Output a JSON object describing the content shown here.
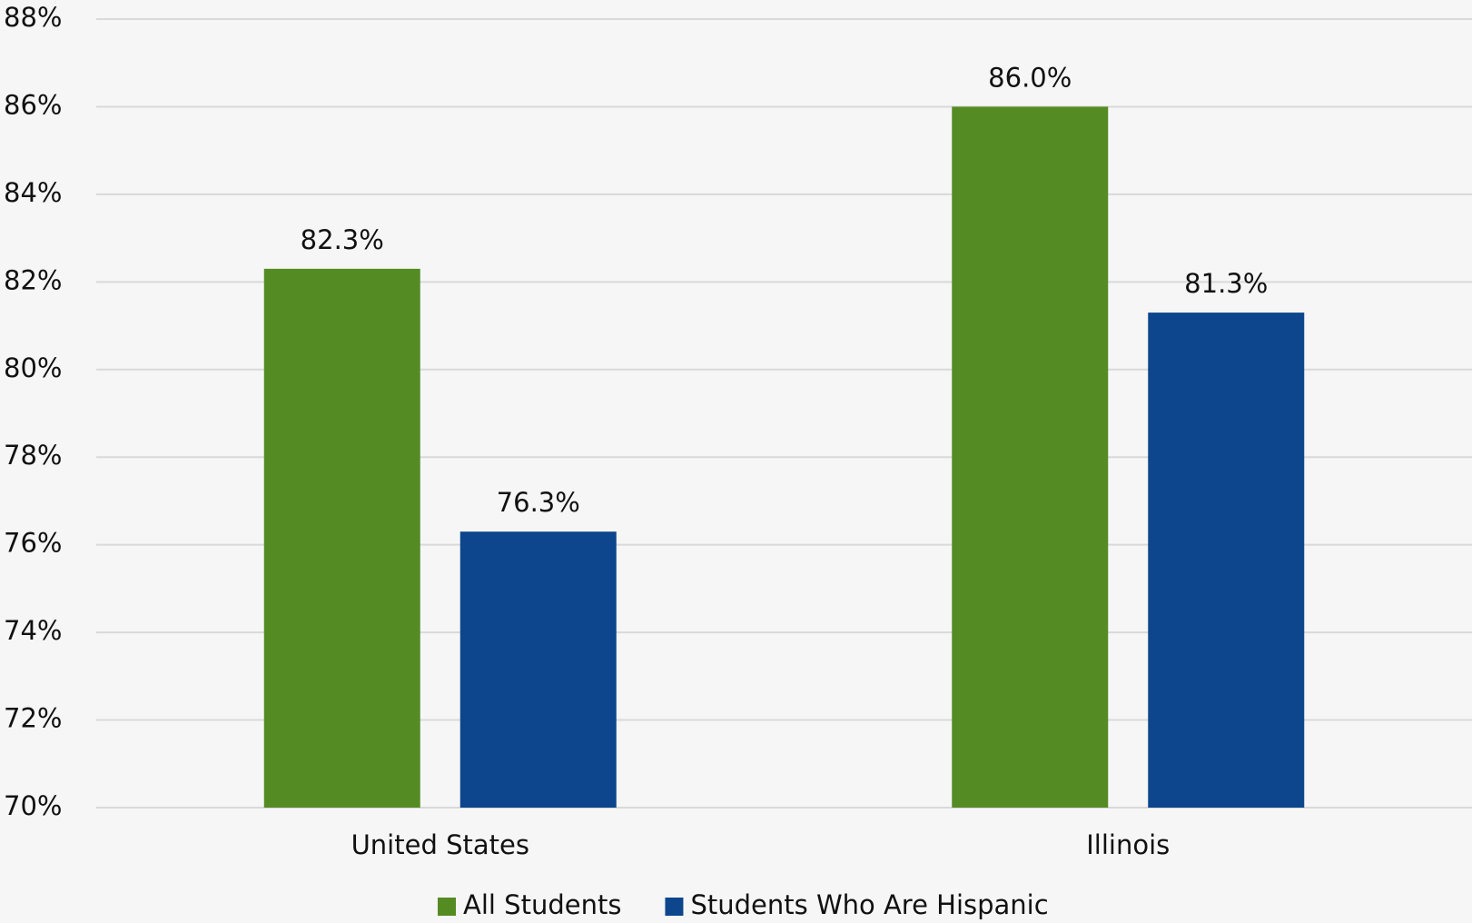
{
  "chart_data": {
    "type": "bar",
    "categories": [
      "United States",
      "Illinois"
    ],
    "series": [
      {
        "name": "All Students",
        "color": "#558b23",
        "values": [
          82.3,
          86.0
        ],
        "value_labels": [
          "82.3%",
          "86.0%"
        ]
      },
      {
        "name": "Students Who Are Hispanic",
        "color": "#0d468c",
        "values": [
          76.3,
          81.3
        ],
        "value_labels": [
          "76.3%",
          "81.3%"
        ]
      }
    ],
    "ylim": [
      70,
      88
    ],
    "yticks": [
      {
        "value": 70,
        "label": "70%"
      },
      {
        "value": 72,
        "label": "72%"
      },
      {
        "value": 74,
        "label": "74%"
      },
      {
        "value": 76,
        "label": "76%"
      },
      {
        "value": 78,
        "label": "78%"
      },
      {
        "value": 80,
        "label": "80%"
      },
      {
        "value": 82,
        "label": "82%"
      },
      {
        "value": 84,
        "label": "84%"
      },
      {
        "value": 86,
        "label": "86%"
      },
      {
        "value": 88,
        "label": "88%"
      }
    ],
    "grid": true,
    "legend": "bottom"
  }
}
